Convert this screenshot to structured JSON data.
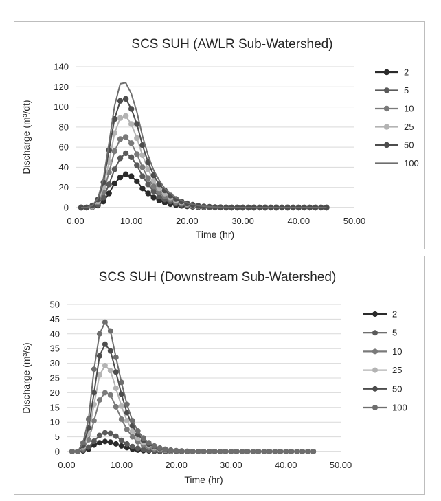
{
  "chart_data": [
    {
      "type": "line",
      "title": "SCS SUH (AWLR Sub-Watershed)",
      "xlabel": "Time (hr)",
      "ylabel": "Discharge (m³/dt)",
      "xlim": [
        0,
        50
      ],
      "ylim": [
        0,
        140
      ],
      "x_ticks": [
        "0.00",
        "10.00",
        "20.00",
        "30.00",
        "40.00",
        "50.00"
      ],
      "y_ticks": [
        "0",
        "20",
        "40",
        "60",
        "80",
        "100",
        "120",
        "140"
      ],
      "grid": "horizontal",
      "legend_position": "right",
      "x": [
        1,
        2,
        3,
        4,
        5,
        6,
        7,
        8,
        9,
        10,
        11,
        12,
        13,
        14,
        15,
        16,
        17,
        18,
        19,
        20,
        21,
        22,
        23,
        24,
        25,
        26,
        27,
        28,
        29,
        30,
        31,
        32,
        33,
        34,
        35,
        36,
        37,
        38,
        39,
        40,
        41,
        42,
        43,
        44,
        45
      ],
      "series": [
        {
          "name": "2",
          "color": "#2b2b2b",
          "markers": true,
          "values": [
            0,
            0,
            0.5,
            2,
            6,
            14,
            24,
            30,
            33,
            31,
            26,
            19,
            14,
            10,
            7,
            5,
            3.5,
            2.5,
            1.8,
            1.2,
            0.8,
            0.5,
            0.3,
            0.2,
            0.1,
            0.1,
            0,
            0,
            0,
            0,
            0,
            0,
            0,
            0,
            0,
            0,
            0,
            0,
            0,
            0,
            0,
            0,
            0,
            0,
            0
          ]
        },
        {
          "name": "5",
          "color": "#5a5a5a",
          "markers": true,
          "values": [
            0,
            0,
            0.5,
            3,
            10,
            23,
            38,
            49,
            54,
            50,
            42,
            31,
            23,
            16,
            11,
            8,
            6,
            4,
            3,
            2,
            1.2,
            0.8,
            0.5,
            0.3,
            0.2,
            0.1,
            0.1,
            0,
            0,
            0,
            0,
            0,
            0,
            0,
            0,
            0,
            0,
            0,
            0,
            0,
            0,
            0,
            0,
            0,
            0
          ]
        },
        {
          "name": "10",
          "color": "#7a7a7a",
          "markers": true,
          "values": [
            0,
            0,
            1,
            5,
            15,
            35,
            56,
            68,
            70,
            64,
            53,
            40,
            29,
            21,
            15,
            11,
            8,
            5.5,
            4,
            2.8,
            1.8,
            1.2,
            0.8,
            0.5,
            0.3,
            0.2,
            0.1,
            0,
            0,
            0,
            0,
            0,
            0,
            0,
            0,
            0,
            0,
            0,
            0,
            0,
            0,
            0,
            0,
            0,
            0
          ]
        },
        {
          "name": "25",
          "color": "#b3b3b3",
          "markers": true,
          "values": [
            0,
            0,
            1,
            6,
            20,
            45,
            74,
            89,
            91,
            83,
            69,
            52,
            38,
            27,
            19,
            14,
            10,
            7,
            5,
            3.5,
            2.2,
            1.4,
            0.9,
            0.6,
            0.4,
            0.2,
            0.1,
            0,
            0,
            0,
            0,
            0,
            0,
            0,
            0,
            0,
            0,
            0,
            0,
            0,
            0,
            0,
            0,
            0,
            0
          ]
        },
        {
          "name": "50",
          "color": "#4d4d4d",
          "markers": true,
          "values": [
            0,
            0,
            2,
            8,
            25,
            57,
            88,
            106,
            108,
            98,
            83,
            62,
            45,
            32,
            23,
            17,
            12,
            8.5,
            6,
            4,
            2.7,
            1.7,
            1.1,
            0.7,
            0.4,
            0.3,
            0.1,
            0,
            0,
            0,
            0,
            0,
            0,
            0,
            0,
            0,
            0,
            0,
            0,
            0,
            0,
            0,
            0,
            0,
            0
          ]
        },
        {
          "name": "100",
          "color": "#6e6e6e",
          "markers": false,
          "values": [
            0,
            0,
            2,
            9,
            29,
            64,
            101,
            123,
            124,
            113,
            95,
            71,
            52,
            37,
            27,
            19,
            14,
            10,
            7,
            4.5,
            3,
            2,
            1.3,
            0.8,
            0.5,
            0.3,
            0.2,
            0,
            0,
            0,
            0,
            0,
            0,
            0,
            0,
            0,
            0,
            0,
            0,
            0,
            0,
            0,
            0,
            0,
            0
          ]
        }
      ]
    },
    {
      "type": "line",
      "title": "SCS SUH (Downstream Sub-Watershed)",
      "xlabel": "Time (hr)",
      "ylabel": "Discharge (m³/s)",
      "xlim": [
        0,
        50
      ],
      "ylim": [
        0,
        50
      ],
      "x_ticks": [
        "0.00",
        "10.00",
        "20.00",
        "30.00",
        "40.00",
        "50.00"
      ],
      "y_ticks": [
        "0",
        "5",
        "10",
        "15",
        "20",
        "25",
        "30",
        "35",
        "40",
        "45",
        "50"
      ],
      "grid": "horizontal",
      "legend_position": "right",
      "x": [
        1,
        2,
        3,
        4,
        5,
        6,
        7,
        8,
        9,
        10,
        11,
        12,
        13,
        14,
        15,
        16,
        17,
        18,
        19,
        20,
        21,
        22,
        23,
        24,
        25,
        26,
        27,
        28,
        29,
        30,
        31,
        32,
        33,
        34,
        35,
        36,
        37,
        38,
        39,
        40,
        41,
        42,
        43,
        44,
        45
      ],
      "series": [
        {
          "name": "2",
          "color": "#2b2b2b",
          "markers": true,
          "values": [
            0,
            0,
            0.2,
            0.8,
            2.2,
            3,
            3.4,
            3.2,
            2.6,
            1.9,
            1.3,
            0.8,
            0.5,
            0.3,
            0.2,
            0.1,
            0,
            0,
            0,
            0,
            0,
            0,
            0,
            0,
            0,
            0,
            0,
            0,
            0,
            0,
            0,
            0,
            0,
            0,
            0,
            0,
            0,
            0,
            0,
            0,
            0,
            0,
            0,
            0,
            0
          ]
        },
        {
          "name": "5",
          "color": "#5a5a5a",
          "markers": true,
          "values": [
            0,
            0,
            0.4,
            1.5,
            3.5,
            5.5,
            6.4,
            6.2,
            5.2,
            3.8,
            2.6,
            1.7,
            1.1,
            0.7,
            0.4,
            0.2,
            0.1,
            0,
            0,
            0,
            0,
            0,
            0,
            0,
            0,
            0,
            0,
            0,
            0,
            0,
            0,
            0,
            0,
            0,
            0,
            0,
            0,
            0,
            0,
            0,
            0,
            0,
            0,
            0,
            0
          ]
        },
        {
          "name": "10",
          "color": "#7a7a7a",
          "markers": true,
          "values": [
            0,
            0,
            1,
            4,
            10.5,
            17.5,
            20,
            19.2,
            15.2,
            11,
            7.5,
            5,
            3.3,
            2.2,
            1.4,
            0.9,
            0.6,
            0.4,
            0.2,
            0.1,
            0,
            0,
            0,
            0,
            0,
            0,
            0,
            0,
            0,
            0,
            0,
            0,
            0,
            0,
            0,
            0,
            0,
            0,
            0,
            0,
            0,
            0,
            0,
            0,
            0
          ]
        },
        {
          "name": "25",
          "color": "#b3b3b3",
          "markers": true,
          "values": [
            0,
            0,
            1.5,
            6,
            16,
            26,
            29.2,
            27.5,
            21.5,
            15.5,
            10.5,
            7,
            4.6,
            3,
            2,
            1.3,
            0.8,
            0.5,
            0.3,
            0.2,
            0.1,
            0,
            0,
            0,
            0,
            0,
            0,
            0,
            0,
            0,
            0,
            0,
            0,
            0,
            0,
            0,
            0,
            0,
            0,
            0,
            0,
            0,
            0,
            0,
            0
          ]
        },
        {
          "name": "50",
          "color": "#4d4d4d",
          "markers": true,
          "values": [
            0,
            0,
            2,
            8,
            20,
            32.5,
            36.5,
            34.2,
            27,
            19.5,
            13.2,
            8.8,
            5.8,
            3.8,
            2.5,
            1.6,
            1,
            0.6,
            0.4,
            0.2,
            0.1,
            0,
            0,
            0,
            0,
            0,
            0,
            0,
            0,
            0,
            0,
            0,
            0,
            0,
            0,
            0,
            0,
            0,
            0,
            0,
            0,
            0,
            0,
            0,
            0
          ]
        },
        {
          "name": "100",
          "color": "#6e6e6e",
          "markers": true,
          "values": [
            0,
            0,
            3,
            11,
            28,
            40,
            44,
            41,
            32,
            23.5,
            16,
            10.5,
            7,
            4.6,
            3,
            1.9,
            1.2,
            0.8,
            0.5,
            0.3,
            0.2,
            0.1,
            0,
            0,
            0,
            0,
            0,
            0,
            0,
            0,
            0,
            0,
            0,
            0,
            0,
            0,
            0,
            0,
            0,
            0,
            0,
            0,
            0,
            0,
            0
          ]
        }
      ]
    }
  ]
}
